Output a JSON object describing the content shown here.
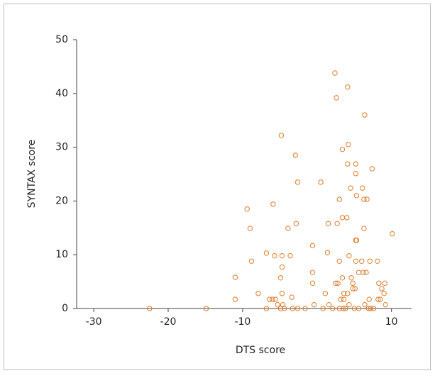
{
  "chart_data": {
    "type": "scatter",
    "x_label": "DTS score",
    "y_label": "SYNTAX score",
    "color": "#e07b2a",
    "xlim": [
      -32.3,
      12.7
    ],
    "ylim": [
      0,
      50
    ],
    "xticks": [
      -30,
      -20,
      -10,
      10
    ],
    "yticks": [
      0,
      10,
      20,
      30,
      40,
      50
    ],
    "x": [
      -22.5,
      -14.9,
      -11,
      -11,
      -9.4,
      -9,
      -8.8,
      -7.9,
      -6.8,
      -6.8,
      -6.4,
      -6,
      -5.9,
      -5.7,
      -5.6,
      -5.3,
      -4.9,
      -4.8,
      -4.7,
      -4.7,
      -4.9,
      -4.7,
      -4.6,
      -4.4,
      -3.9,
      -3.6,
      -3.4,
      -3.3,
      -2.8,
      -2.9,
      -2.6,
      -2.6,
      -1.6,
      -0.6,
      -0.6,
      -0.6,
      -0.4,
      0.5,
      0.8,
      1.1,
      1.4,
      1.5,
      1.6,
      2.1,
      2.4,
      2.6,
      2.5,
      2.8,
      2.7,
      3,
      3,
      3,
      3.2,
      3.4,
      3.4,
      3.4,
      3.5,
      3.6,
      3.6,
      3.8,
      4,
      4.1,
      4.1,
      4.1,
      4.2,
      4.3,
      4.3,
      4.5,
      4.6,
      4.8,
      4.8,
      5,
      5.2,
      5.2,
      5.2,
      5.2,
      5.1,
      5.3,
      5.3,
      5.6,
      5.6,
      6,
      6.1,
      6.2,
      6.3,
      6.4,
      6.3,
      6.4,
      6.6,
      6.7,
      6.9,
      7,
      7.1,
      7.2,
      7.4,
      8.1,
      8.3,
      8.2,
      8.5,
      8.7,
      9,
      9.1,
      9.2,
      10.1,
      7.6
    ],
    "y": [
      0,
      0,
      5.8,
      1.7,
      18.5,
      14.9,
      8.8,
      2.8,
      10.3,
      0,
      1.7,
      1.7,
      19.4,
      9.8,
      1.7,
      0.7,
      0,
      32.2,
      9.8,
      7.7,
      5.7,
      2.8,
      0.7,
      0,
      14.9,
      9.8,
      2.1,
      0,
      15.8,
      28.5,
      23.5,
      0,
      0,
      11.7,
      6.7,
      4.7,
      0.7,
      23.5,
      0,
      2.8,
      10.4,
      15.8,
      0.7,
      0,
      43.8,
      39.2,
      4.7,
      4.7,
      15.8,
      8.8,
      0,
      20.3,
      1.7,
      5.7,
      29.6,
      16.9,
      0,
      2.8,
      1.7,
      0,
      16.9,
      41.2,
      2.8,
      26.9,
      30.5,
      9.8,
      0.7,
      22.4,
      5.7,
      4.7,
      3.7,
      0,
      26.9,
      12.7,
      8.8,
      25.1,
      3.7,
      21,
      12.7,
      6.7,
      0,
      8.8,
      22.4,
      6.7,
      20.3,
      36,
      14.9,
      0.7,
      6.7,
      20.3,
      0,
      1.7,
      8.8,
      0,
      26,
      8.8,
      4.7,
      1.7,
      1.7,
      3.7,
      2.8,
      4.7,
      0.7,
      13.9,
      0
    ]
  }
}
